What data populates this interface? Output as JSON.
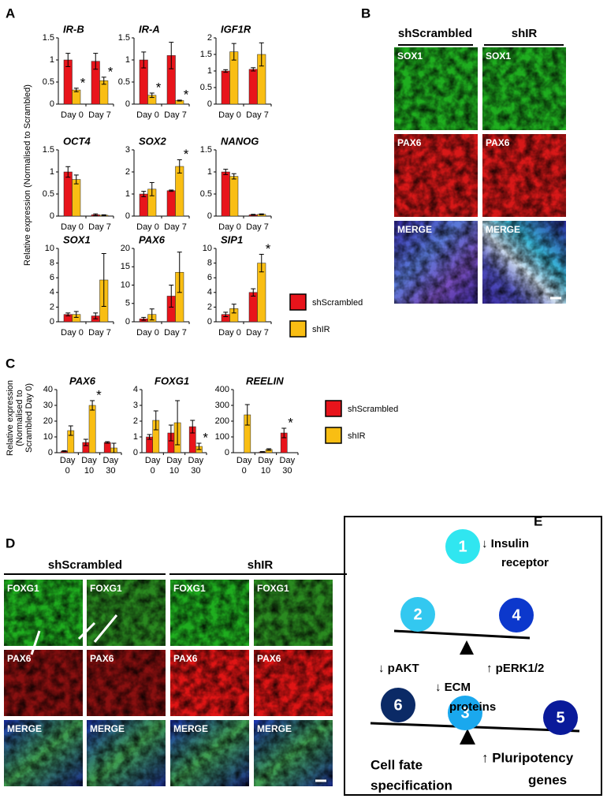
{
  "chart_data": [
    {
      "type": "bar",
      "title": "IR-B",
      "categories": [
        "Day 0",
        "Day 7"
      ],
      "ylim": [
        0,
        1.5
      ],
      "yticks": [
        0,
        0.5,
        1,
        1.5
      ],
      "series": [
        {
          "name": "shScrambled",
          "color": "#e8141b",
          "values": [
            1.0,
            0.97
          ],
          "errors": [
            0.15,
            0.18
          ]
        },
        {
          "name": "shIR",
          "color": "#f9be13",
          "values": [
            0.32,
            0.53
          ],
          "errors": [
            0.04,
            0.08
          ]
        }
      ],
      "significance": [
        {
          "series": 1,
          "index": 0,
          "label": "*"
        },
        {
          "series": 1,
          "index": 1,
          "label": "*"
        }
      ]
    },
    {
      "type": "bar",
      "title": "IR-A",
      "categories": [
        "Day 0",
        "Day 7"
      ],
      "ylim": [
        0,
        1.5
      ],
      "yticks": [
        0,
        0.5,
        1,
        1.5
      ],
      "series": [
        {
          "name": "shScrambled",
          "color": "#e8141b",
          "values": [
            1.0,
            1.1
          ],
          "errors": [
            0.18,
            0.3
          ]
        },
        {
          "name": "shIR",
          "color": "#f9be13",
          "values": [
            0.2,
            0.08
          ],
          "errors": [
            0.05,
            0.01
          ]
        }
      ],
      "significance": [
        {
          "series": 1,
          "index": 0,
          "label": "*"
        },
        {
          "series": 1,
          "index": 1,
          "label": "*"
        }
      ]
    },
    {
      "type": "bar",
      "title": "IGF1R",
      "categories": [
        "Day 0",
        "Day 7"
      ],
      "ylim": [
        0,
        2
      ],
      "yticks": [
        0,
        0.5,
        1,
        1.5,
        2
      ],
      "series": [
        {
          "name": "shScrambled",
          "color": "#e8141b",
          "values": [
            1.0,
            1.05
          ],
          "errors": [
            0.04,
            0.05
          ]
        },
        {
          "name": "shIR",
          "color": "#f9be13",
          "values": [
            1.58,
            1.5
          ],
          "errors": [
            0.25,
            0.35
          ]
        }
      ]
    },
    {
      "type": "bar",
      "title": "OCT4",
      "categories": [
        "Day 0",
        "Day 7"
      ],
      "ylim": [
        0,
        1.5
      ],
      "yticks": [
        0,
        0.5,
        1,
        1.5
      ],
      "series": [
        {
          "name": "shScrambled",
          "color": "#e8141b",
          "values": [
            1.0,
            0.03
          ],
          "errors": [
            0.12,
            0.02
          ]
        },
        {
          "name": "shIR",
          "color": "#f9be13",
          "values": [
            0.83,
            0.02
          ],
          "errors": [
            0.1,
            0.01
          ]
        }
      ]
    },
    {
      "type": "bar",
      "title": "SOX2",
      "categories": [
        "Day 0",
        "Day 7"
      ],
      "ylim": [
        0,
        3
      ],
      "yticks": [
        0,
        1,
        2,
        3
      ],
      "series": [
        {
          "name": "shScrambled",
          "color": "#e8141b",
          "values": [
            1.0,
            1.15
          ],
          "errors": [
            0.12,
            0.03
          ]
        },
        {
          "name": "shIR",
          "color": "#f9be13",
          "values": [
            1.22,
            2.25
          ],
          "errors": [
            0.3,
            0.3
          ]
        }
      ],
      "significance": [
        {
          "series": 1,
          "index": 1,
          "label": "*"
        }
      ]
    },
    {
      "type": "bar",
      "title": "NANOG",
      "categories": [
        "Day 0",
        "Day 7"
      ],
      "ylim": [
        0,
        1.5
      ],
      "yticks": [
        0,
        0.5,
        1,
        1.5
      ],
      "series": [
        {
          "name": "shScrambled",
          "color": "#e8141b",
          "values": [
            1.0,
            0.03
          ],
          "errors": [
            0.06,
            0.01
          ]
        },
        {
          "name": "shIR",
          "color": "#f9be13",
          "values": [
            0.9,
            0.04
          ],
          "errors": [
            0.06,
            0.01
          ]
        }
      ]
    },
    {
      "type": "bar",
      "title": "SOX1",
      "categories": [
        "Day 0",
        "Day 7"
      ],
      "ylim": [
        0,
        10
      ],
      "yticks": [
        0,
        2,
        4,
        6,
        8,
        10
      ],
      "series": [
        {
          "name": "shScrambled",
          "color": "#e8141b",
          "values": [
            1.0,
            0.8
          ],
          "errors": [
            0.2,
            0.4
          ]
        },
        {
          "name": "shIR",
          "color": "#f9be13",
          "values": [
            1.0,
            5.7
          ],
          "errors": [
            0.4,
            3.6
          ]
        }
      ]
    },
    {
      "type": "bar",
      "title": "PAX6",
      "categories": [
        "Day 0",
        "Day 7"
      ],
      "ylim": [
        0,
        20
      ],
      "yticks": [
        0,
        5,
        10,
        15,
        20
      ],
      "series": [
        {
          "name": "shScrambled",
          "color": "#e8141b",
          "values": [
            0.8,
            7.0
          ],
          "errors": [
            0.4,
            3
          ]
        },
        {
          "name": "shIR",
          "color": "#f9be13",
          "values": [
            2.0,
            13.5
          ],
          "errors": [
            1.5,
            5.5
          ]
        }
      ]
    },
    {
      "type": "bar",
      "title": "SIP1",
      "categories": [
        "Day 0",
        "Day 7"
      ],
      "ylim": [
        0,
        10
      ],
      "yticks": [
        0,
        2,
        4,
        6,
        8,
        10
      ],
      "series": [
        {
          "name": "shScrambled",
          "color": "#e8141b",
          "values": [
            1.0,
            4.0
          ],
          "errors": [
            0.3,
            0.5
          ]
        },
        {
          "name": "shIR",
          "color": "#f9be13",
          "values": [
            1.8,
            8.0
          ],
          "errors": [
            0.6,
            1.2
          ]
        }
      ],
      "significance": [
        {
          "series": 1,
          "index": 1,
          "label": "*"
        }
      ]
    },
    {
      "type": "bar",
      "title": "PAX6",
      "categories": [
        "Day 0",
        "Day 10",
        "Day 30"
      ],
      "ylim": [
        0,
        40
      ],
      "yticks": [
        0,
        10,
        20,
        30,
        40
      ],
      "series": [
        {
          "name": "shScrambled",
          "color": "#e8141b",
          "values": [
            1,
            6.5,
            6.5
          ],
          "errors": [
            0.3,
            2,
            0.5
          ]
        },
        {
          "name": "shIR",
          "color": "#f9be13",
          "values": [
            14,
            30,
            3
          ],
          "errors": [
            3,
            3,
            3
          ]
        }
      ],
      "significance": [
        {
          "series": 1,
          "index": 1,
          "label": "*"
        }
      ]
    },
    {
      "type": "bar",
      "title": "FOXG1",
      "categories": [
        "Day 0",
        "Day 10",
        "Day 30"
      ],
      "ylim": [
        0,
        4
      ],
      "yticks": [
        0,
        1,
        2,
        3,
        4
      ],
      "series": [
        {
          "name": "shScrambled",
          "color": "#e8141b",
          "values": [
            1,
            1.25,
            1.65
          ],
          "errors": [
            0.15,
            0.5,
            0.4
          ]
        },
        {
          "name": "shIR",
          "color": "#f9be13",
          "values": [
            2.05,
            1.9,
            0.4
          ],
          "errors": [
            0.6,
            1.4,
            0.2
          ]
        }
      ],
      "significance": [
        {
          "series": 1,
          "index": 2,
          "label": "*"
        }
      ]
    },
    {
      "type": "bar",
      "title": "REELIN",
      "categories": [
        "Day 0",
        "Day 10",
        "Day 30"
      ],
      "ylim": [
        0,
        400
      ],
      "yticks": [
        0,
        100,
        200,
        300,
        400
      ],
      "series": [
        {
          "name": "shScrambled",
          "color": "#e8141b",
          "values": [
            0,
            5,
            125
          ],
          "errors": [
            0,
            2,
            30
          ]
        },
        {
          "name": "shIR",
          "color": "#f9be13",
          "values": [
            240,
            20,
            0
          ],
          "errors": [
            65,
            5,
            0
          ]
        }
      ],
      "significance": [
        {
          "series": 0,
          "index": 2,
          "label": "*"
        }
      ]
    }
  ],
  "panel_labels": [
    "A",
    "B",
    "C",
    "D",
    "E"
  ],
  "panel_a": {
    "y_label": "Relative expression (Normalised to Scrambled)"
  },
  "panel_c": {
    "y_label": [
      "Relative expression",
      "(Normalised to",
      "Scrambled Day 0)"
    ]
  },
  "panel_b": {
    "columns": [
      "shScrambled",
      "shIR"
    ],
    "rows": [
      "SOX1",
      "PAX6",
      "MERGE"
    ]
  },
  "panel_d": {
    "columns": [
      "shScrambled",
      "shIR"
    ],
    "rows": [
      "FOXG1",
      "PAX6",
      "MERGE"
    ]
  },
  "panel_e": {
    "nodes": [
      "1",
      "2",
      "3",
      "4",
      "5",
      "6"
    ],
    "labels": [
      [
        "↓ Insulin",
        "receptor"
      ],
      [
        "↓ pAKT"
      ],
      [
        "↑ pERK1/2"
      ],
      [
        "↓ ECM",
        "proteins"
      ],
      [
        "Cell fate",
        "specification"
      ],
      [
        "↑ Pluripotency",
        "genes"
      ]
    ]
  }
}
